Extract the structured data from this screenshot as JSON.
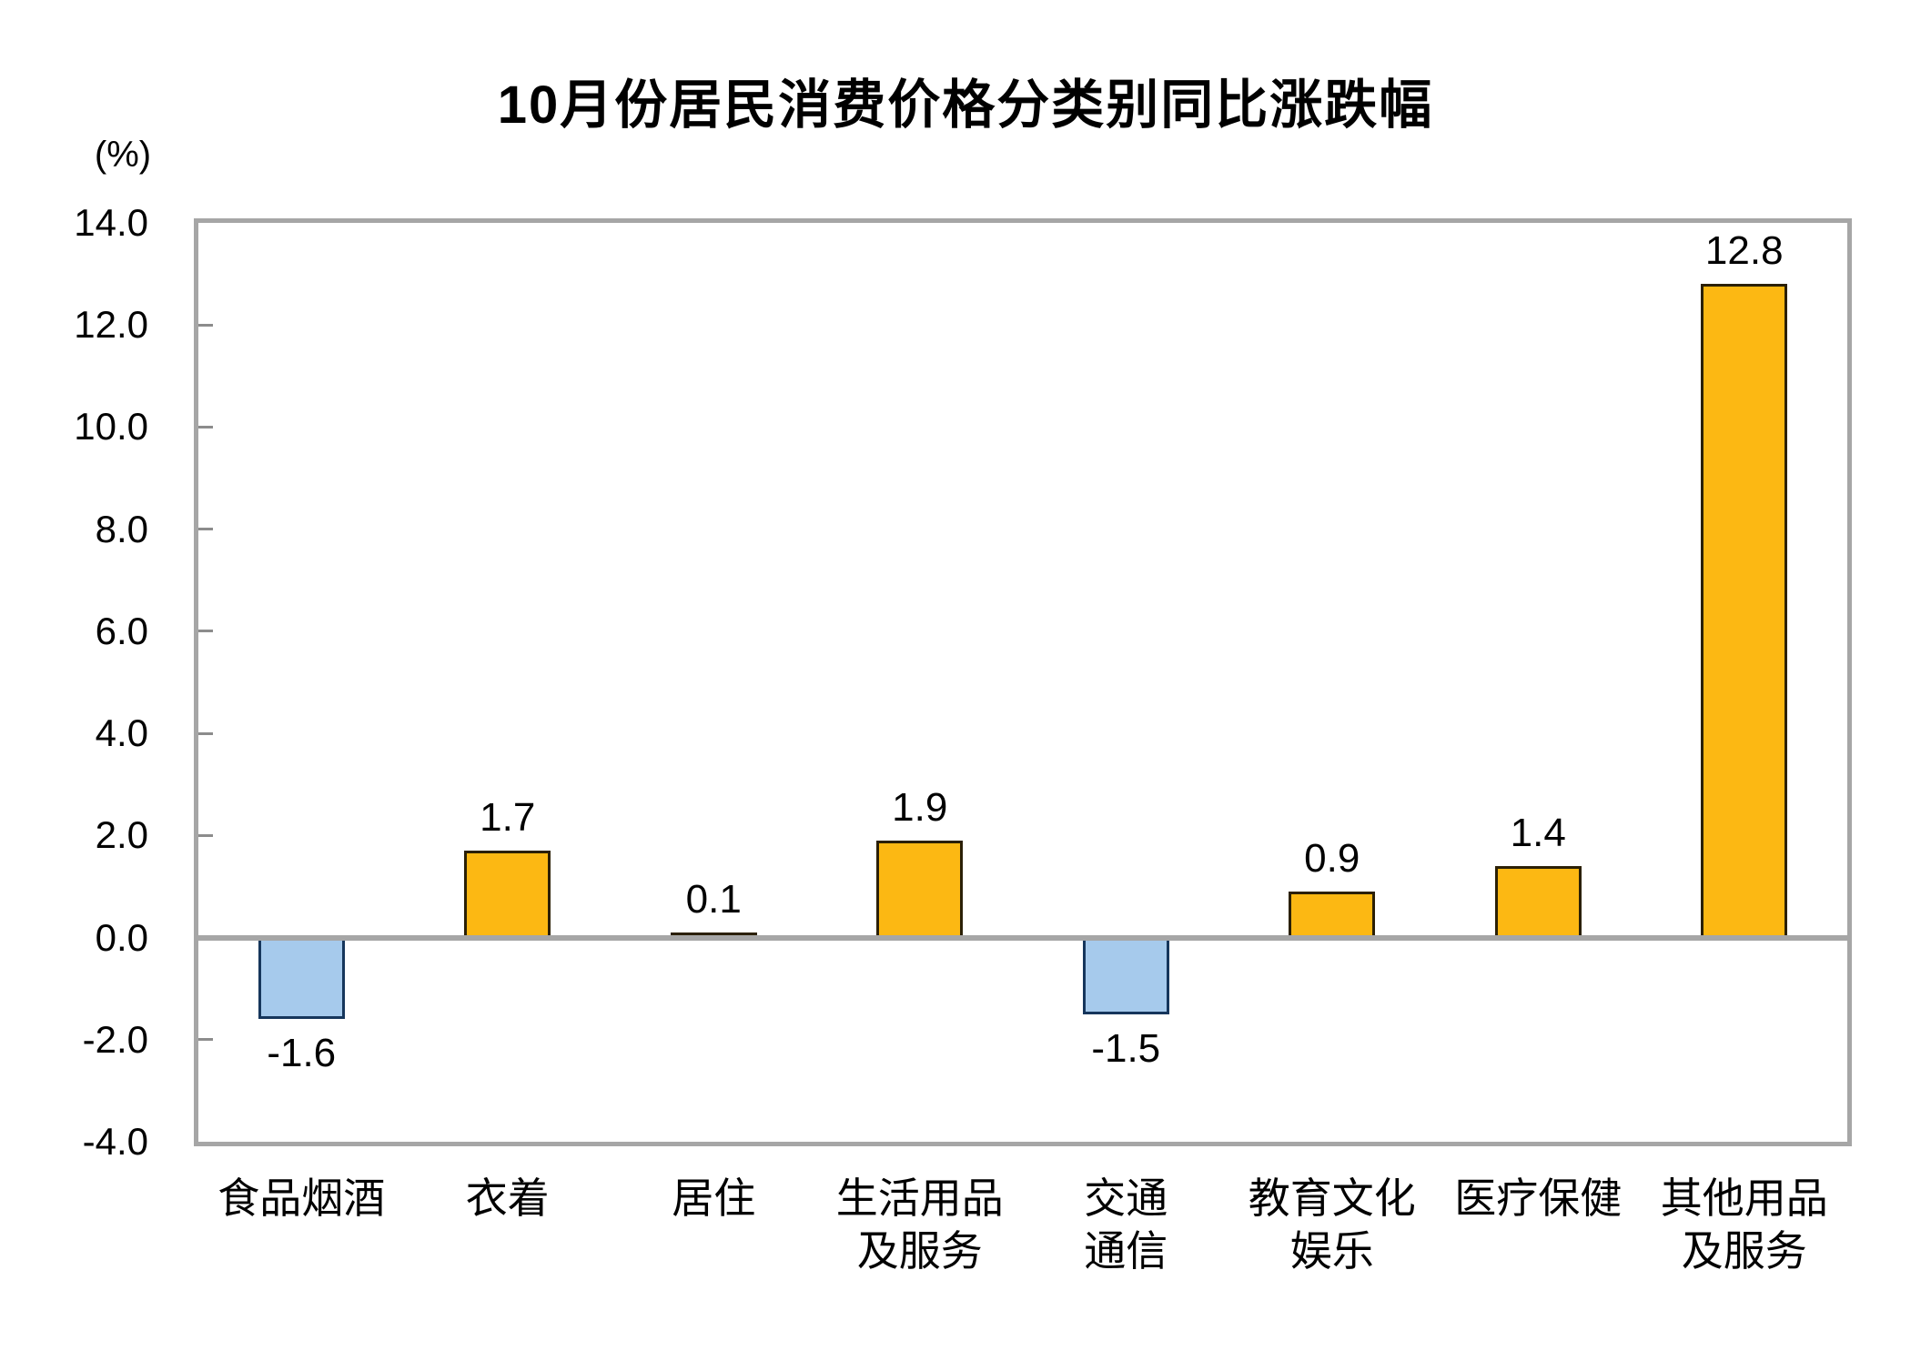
{
  "chart_data": {
    "type": "bar",
    "title": "10月份居民消费价格分类别同比涨跌幅",
    "ylabel": "(%)",
    "xlabel": "",
    "categories": [
      "食品烟酒",
      "衣着",
      "居住",
      "生活用品及服务",
      "交通通信",
      "教育文化娱乐",
      "医疗保健",
      "其他用品及服务"
    ],
    "category_lines": [
      [
        "食品烟酒"
      ],
      [
        "衣着"
      ],
      [
        "居住"
      ],
      [
        "生活用品",
        "及服务"
      ],
      [
        "交通",
        "通信"
      ],
      [
        "教育文化",
        "娱乐"
      ],
      [
        "医疗保健"
      ],
      [
        "其他用品",
        "及服务"
      ]
    ],
    "values": [
      -1.6,
      1.7,
      0.1,
      1.9,
      -1.5,
      0.9,
      1.4,
      12.8
    ],
    "data_labels": [
      "-1.6",
      "1.7",
      "0.1",
      "1.9",
      "-1.5",
      "0.9",
      "1.4",
      "12.8"
    ],
    "ylim": [
      -4.0,
      14.0
    ],
    "yticks": [
      14.0,
      12.0,
      10.0,
      8.0,
      6.0,
      4.0,
      2.0,
      0.0,
      -2.0,
      -4.0
    ],
    "ytick_labels": [
      "14.0",
      "12.0",
      "10.0",
      "8.0",
      "6.0",
      "4.0",
      "2.0",
      "0.0",
      "-2.0",
      "-4.0"
    ],
    "grid": false,
    "legend": null,
    "colors": {
      "positive_fill": "#FCB813",
      "positive_border": "#2B2006",
      "negative_fill": "#A6CAEC",
      "negative_border": "#16365C",
      "axis_frame": "#A6A6A6",
      "zero_line": "#A6A6A6",
      "tick": "#8C8C8C",
      "text": "#000000",
      "background": "#FFFFFF"
    }
  }
}
